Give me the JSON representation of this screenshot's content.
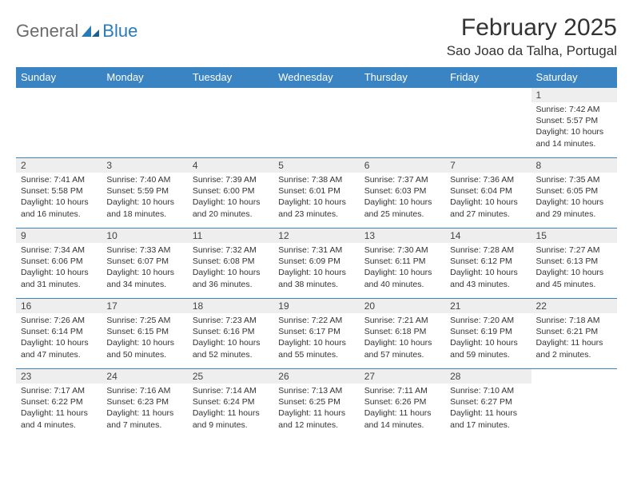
{
  "logo": {
    "text1": "General",
    "text2": "Blue"
  },
  "title": "February 2025",
  "location": "Sao Joao da Talha, Portugal",
  "colors": {
    "header_bg": "#3b84c4",
    "header_text": "#ffffff",
    "border": "#3b84c4",
    "daynum_bg": "#eeeeee",
    "logo_gray": "#6b6b6b",
    "logo_blue": "#2a7ab8"
  },
  "weekdays": [
    "Sunday",
    "Monday",
    "Tuesday",
    "Wednesday",
    "Thursday",
    "Friday",
    "Saturday"
  ],
  "weeks": [
    [
      null,
      null,
      null,
      null,
      null,
      null,
      {
        "d": "1",
        "sr": "7:42 AM",
        "ss": "5:57 PM",
        "dl": "10 hours and 14 minutes."
      }
    ],
    [
      {
        "d": "2",
        "sr": "7:41 AM",
        "ss": "5:58 PM",
        "dl": "10 hours and 16 minutes."
      },
      {
        "d": "3",
        "sr": "7:40 AM",
        "ss": "5:59 PM",
        "dl": "10 hours and 18 minutes."
      },
      {
        "d": "4",
        "sr": "7:39 AM",
        "ss": "6:00 PM",
        "dl": "10 hours and 20 minutes."
      },
      {
        "d": "5",
        "sr": "7:38 AM",
        "ss": "6:01 PM",
        "dl": "10 hours and 23 minutes."
      },
      {
        "d": "6",
        "sr": "7:37 AM",
        "ss": "6:03 PM",
        "dl": "10 hours and 25 minutes."
      },
      {
        "d": "7",
        "sr": "7:36 AM",
        "ss": "6:04 PM",
        "dl": "10 hours and 27 minutes."
      },
      {
        "d": "8",
        "sr": "7:35 AM",
        "ss": "6:05 PM",
        "dl": "10 hours and 29 minutes."
      }
    ],
    [
      {
        "d": "9",
        "sr": "7:34 AM",
        "ss": "6:06 PM",
        "dl": "10 hours and 31 minutes."
      },
      {
        "d": "10",
        "sr": "7:33 AM",
        "ss": "6:07 PM",
        "dl": "10 hours and 34 minutes."
      },
      {
        "d": "11",
        "sr": "7:32 AM",
        "ss": "6:08 PM",
        "dl": "10 hours and 36 minutes."
      },
      {
        "d": "12",
        "sr": "7:31 AM",
        "ss": "6:09 PM",
        "dl": "10 hours and 38 minutes."
      },
      {
        "d": "13",
        "sr": "7:30 AM",
        "ss": "6:11 PM",
        "dl": "10 hours and 40 minutes."
      },
      {
        "d": "14",
        "sr": "7:28 AM",
        "ss": "6:12 PM",
        "dl": "10 hours and 43 minutes."
      },
      {
        "d": "15",
        "sr": "7:27 AM",
        "ss": "6:13 PM",
        "dl": "10 hours and 45 minutes."
      }
    ],
    [
      {
        "d": "16",
        "sr": "7:26 AM",
        "ss": "6:14 PM",
        "dl": "10 hours and 47 minutes."
      },
      {
        "d": "17",
        "sr": "7:25 AM",
        "ss": "6:15 PM",
        "dl": "10 hours and 50 minutes."
      },
      {
        "d": "18",
        "sr": "7:23 AM",
        "ss": "6:16 PM",
        "dl": "10 hours and 52 minutes."
      },
      {
        "d": "19",
        "sr": "7:22 AM",
        "ss": "6:17 PM",
        "dl": "10 hours and 55 minutes."
      },
      {
        "d": "20",
        "sr": "7:21 AM",
        "ss": "6:18 PM",
        "dl": "10 hours and 57 minutes."
      },
      {
        "d": "21",
        "sr": "7:20 AM",
        "ss": "6:19 PM",
        "dl": "10 hours and 59 minutes."
      },
      {
        "d": "22",
        "sr": "7:18 AM",
        "ss": "6:21 PM",
        "dl": "11 hours and 2 minutes."
      }
    ],
    [
      {
        "d": "23",
        "sr": "7:17 AM",
        "ss": "6:22 PM",
        "dl": "11 hours and 4 minutes."
      },
      {
        "d": "24",
        "sr": "7:16 AM",
        "ss": "6:23 PM",
        "dl": "11 hours and 7 minutes."
      },
      {
        "d": "25",
        "sr": "7:14 AM",
        "ss": "6:24 PM",
        "dl": "11 hours and 9 minutes."
      },
      {
        "d": "26",
        "sr": "7:13 AM",
        "ss": "6:25 PM",
        "dl": "11 hours and 12 minutes."
      },
      {
        "d": "27",
        "sr": "7:11 AM",
        "ss": "6:26 PM",
        "dl": "11 hours and 14 minutes."
      },
      {
        "d": "28",
        "sr": "7:10 AM",
        "ss": "6:27 PM",
        "dl": "11 hours and 17 minutes."
      },
      null
    ]
  ]
}
